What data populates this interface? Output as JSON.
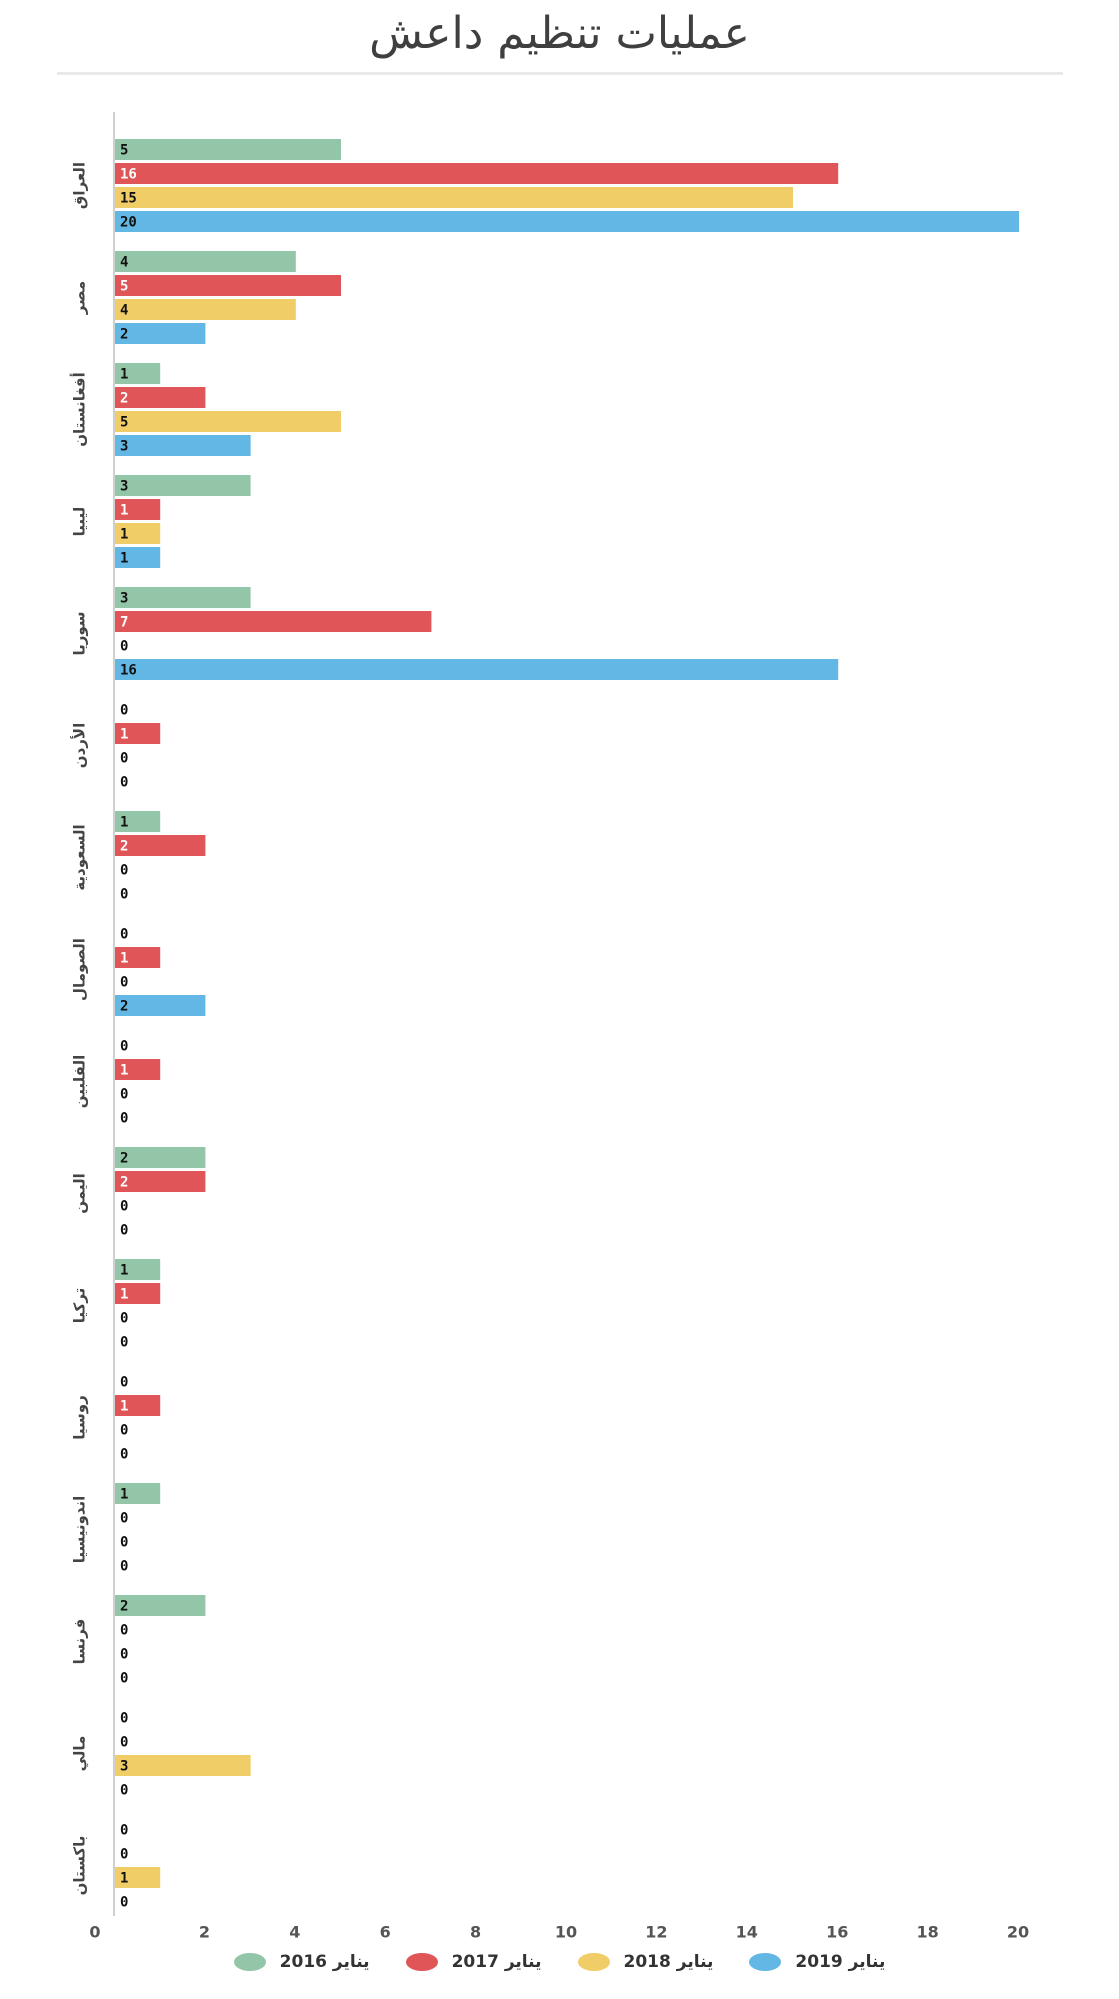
{
  "chart_data": {
    "type": "bar",
    "orientation": "horizontal",
    "title": "عمليات تنظيم داعش",
    "xlabel": "",
    "ylabel": "",
    "xlim": [
      0,
      20
    ],
    "x_ticks": [
      "0",
      "2",
      "4",
      "6",
      "8",
      "10",
      "12",
      "14",
      "16",
      "18",
      "20"
    ],
    "categories": [
      "العراق",
      "مصر",
      "أفغانستان",
      "ليبيا",
      "سوريا",
      "الأردن",
      "السعودية",
      "الصومال",
      "الفلبين",
      "اليمن",
      "تركيا",
      "روسيا",
      "اندونيسيا",
      "فرنسا",
      "مالي",
      "باكستان"
    ],
    "series": [
      {
        "name": "يناير 2016",
        "color": "#93c6a8",
        "values": [
          5,
          4,
          1,
          3,
          3,
          0,
          1,
          0,
          0,
          2,
          1,
          0,
          1,
          2,
          0,
          0
        ]
      },
      {
        "name": "يناير 2017",
        "color": "#e05558",
        "values": [
          16,
          5,
          2,
          1,
          7,
          1,
          2,
          1,
          1,
          2,
          1,
          1,
          0,
          0,
          0,
          0
        ]
      },
      {
        "name": "يناير 2018",
        "color": "#f0cd67",
        "values": [
          15,
          4,
          5,
          1,
          0,
          0,
          0,
          0,
          0,
          0,
          0,
          0,
          0,
          0,
          3,
          1
        ]
      },
      {
        "name": "يناير 2019",
        "color": "#62b7e5",
        "values": [
          20,
          2,
          3,
          1,
          16,
          0,
          0,
          2,
          0,
          0,
          0,
          0,
          0,
          0,
          0,
          0
        ]
      }
    ],
    "data_labels": true,
    "grid": false,
    "legend_position": "bottom"
  }
}
